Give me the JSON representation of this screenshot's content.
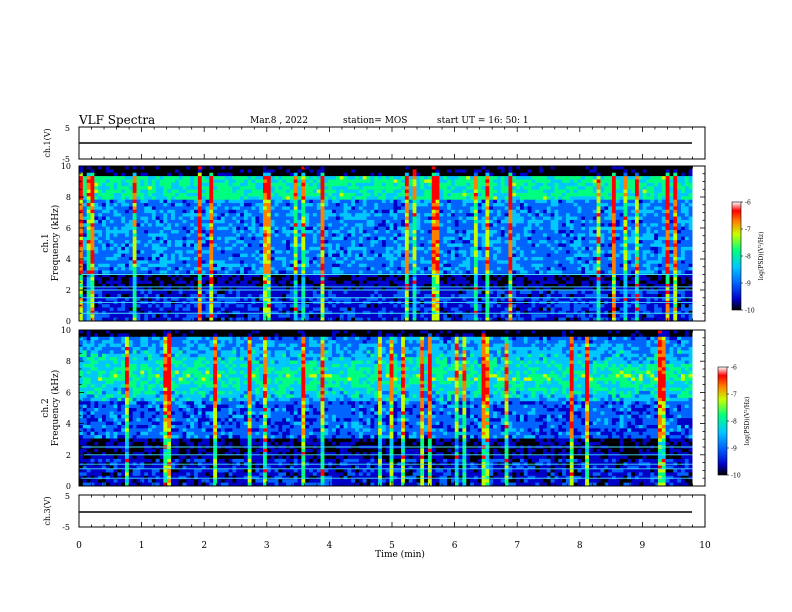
{
  "header": {
    "title": "VLF Spectra",
    "date": "Mar.8 , 2022",
    "station": "station= MOS",
    "start_ut": "start UT = 16: 50: 1"
  },
  "chart_data": [
    {
      "type": "line",
      "name": "ch1-voltage",
      "ylabel": "ch.1(V)",
      "ylim": [
        -5,
        5
      ],
      "yticks": [
        "5",
        "-5"
      ],
      "xlim": [
        0,
        10
      ],
      "series": [
        {
          "x": [
            0,
            9.8
          ],
          "y": [
            0,
            0
          ]
        }
      ]
    },
    {
      "type": "heatmap",
      "name": "ch1-spectrogram",
      "ylabel": "ch.1\nFrequency (kHz)",
      "ylim": [
        0,
        10
      ],
      "yticks": [
        "0",
        "2",
        "4",
        "6",
        "8",
        "10"
      ],
      "xlim": [
        0,
        10
      ],
      "data_end_min": 9.8,
      "colorbar": {
        "label": "log(PSD)(V²/Hz)",
        "ticks": [
          "-6",
          "-7",
          "-8",
          "-9",
          "-10"
        ],
        "range": [
          -10,
          -6
        ]
      }
    },
    {
      "type": "heatmap",
      "name": "ch2-spectrogram",
      "ylabel": "ch.2\nFrequency (kHz)",
      "ylim": [
        0,
        10
      ],
      "yticks": [
        "0",
        "2",
        "4",
        "6",
        "8",
        "10"
      ],
      "xlim": [
        0,
        10
      ],
      "data_end_min": 9.8,
      "colorbar": {
        "label": "log(PSD)(V²/Hz)",
        "ticks": [
          "-6",
          "-7",
          "-8",
          "-9",
          "-10"
        ],
        "range": [
          -10,
          -6
        ]
      }
    },
    {
      "type": "line",
      "name": "ch3-voltage",
      "ylabel": "ch.3(V)",
      "ylim": [
        -5,
        5
      ],
      "yticks": [
        "5",
        "-5"
      ],
      "xlim": [
        0,
        10
      ],
      "series": [
        {
          "x": [
            0,
            9.8
          ],
          "y": [
            0,
            0
          ]
        }
      ]
    }
  ],
  "xaxis": {
    "label": "Time (min)",
    "ticks": [
      "0",
      "1",
      "2",
      "3",
      "4",
      "5",
      "6",
      "7",
      "8",
      "9",
      "10"
    ]
  },
  "colors": {
    "background": "#ffffff",
    "axis": "#000000",
    "colormap": [
      "#000000",
      "#0000c8",
      "#0064ff",
      "#00c8ff",
      "#00ff80",
      "#c8ff00",
      "#ff8000",
      "#ff0000",
      "#ffffff"
    ]
  }
}
